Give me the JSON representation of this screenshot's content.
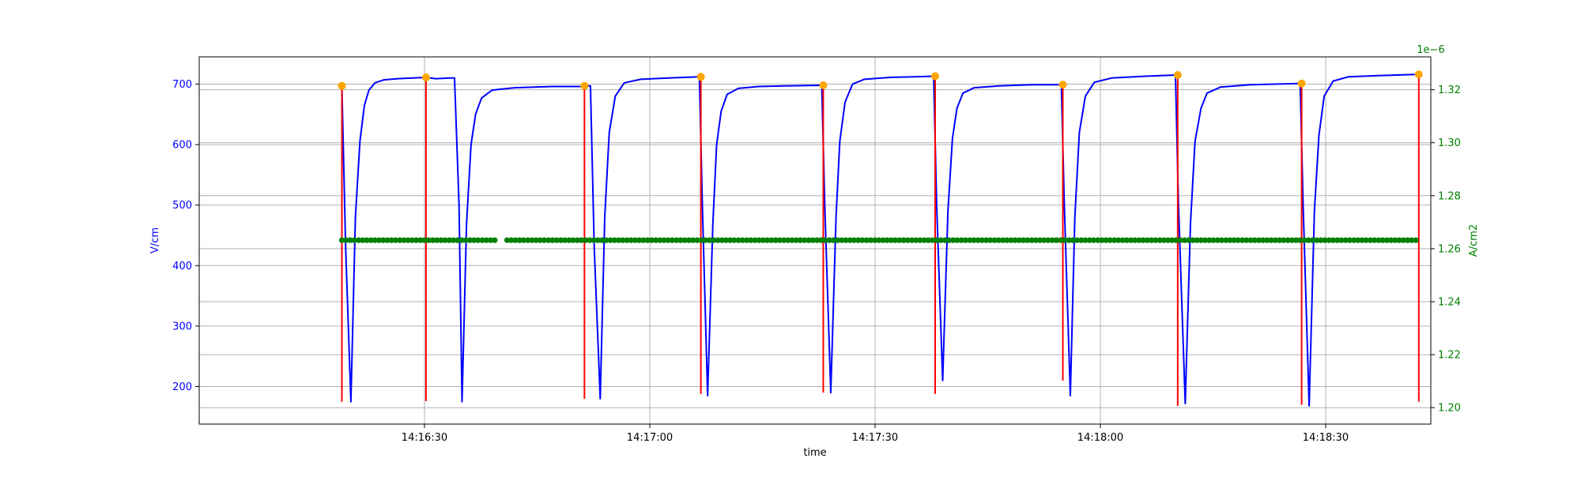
{
  "chart_data": {
    "type": "line",
    "xlabel": "time",
    "ylabel_left": "V/cm",
    "ylabel_right": "A/cm2",
    "right_offset_text": "1e−6",
    "x_range": [
      "14:16:00",
      "14:18:44"
    ],
    "x_ticks": [
      "14:16:30",
      "14:17:00",
      "14:17:30",
      "14:18:00",
      "14:18:30"
    ],
    "y_left_range": [
      138,
      745
    ],
    "y_left_ticks": [
      200,
      300,
      400,
      500,
      600,
      700
    ],
    "y_right_range": [
      1.1938,
      1.3324
    ],
    "y_right_ticks": [
      "1.20",
      "1.22",
      "1.24",
      "1.26",
      "1.28",
      "1.30",
      "1.32"
    ],
    "grid": true,
    "colors": {
      "field": "#0000ff",
      "pulses": "#ff0000",
      "peaks": "#ffa500",
      "current": "#008000",
      "left_axis": "#0000ff",
      "right_axis": "#008000"
    },
    "series": [
      {
        "axis": "left",
        "style": "line",
        "color": "#0000ff",
        "points": [
          [
            "14:16:19",
            697
          ],
          [
            "14:16:19.5",
            430
          ],
          [
            "14:16:20.2",
            175
          ],
          [
            "14:16:20.8",
            480
          ],
          [
            "14:16:21.4",
            605
          ],
          [
            "14:16:22.0",
            665
          ],
          [
            "14:16:22.6",
            690
          ],
          [
            "14:16:23.4",
            702
          ],
          [
            "14:16:24.6",
            707
          ],
          [
            "14:16:26.5",
            709
          ],
          [
            "14:16:28.5",
            710
          ],
          [
            "14:16:30.2",
            711
          ],
          [
            "14:16:31.5",
            709
          ],
          [
            "14:16:33.5",
            710
          ],
          [
            "14:16:34.0",
            710
          ],
          [
            "14:16:34.6",
            500
          ],
          [
            "14:16:35.0",
            175
          ],
          [
            "14:16:35.6",
            470
          ],
          [
            "14:16:36.2",
            600
          ],
          [
            "14:16:36.8",
            650
          ],
          [
            "14:16:37.6",
            677
          ],
          [
            "14:16:39.0",
            690
          ],
          [
            "14:16:42.0",
            694
          ],
          [
            "14:16:47.0",
            696
          ],
          [
            "14:16:51.0",
            696
          ],
          [
            "14:16:52.1",
            697
          ],
          [
            "14:16:52.6",
            430
          ],
          [
            "14:16:53.4",
            180
          ],
          [
            "14:16:54.0",
            480
          ],
          [
            "14:16:54.6",
            620
          ],
          [
            "14:16:55.4",
            680
          ],
          [
            "14:16:56.6",
            702
          ],
          [
            "14:16:58.8",
            708
          ],
          [
            "14:17:02.5",
            710
          ],
          [
            "14:17:06.6",
            712
          ],
          [
            "14:17:07.0",
            500
          ],
          [
            "14:17:07.7",
            185
          ],
          [
            "14:17:08.4",
            470
          ],
          [
            "14:17:08.9",
            600
          ],
          [
            "14:17:09.5",
            655
          ],
          [
            "14:17:10.3",
            683
          ],
          [
            "14:17:11.8",
            693
          ],
          [
            "14:17:14.5",
            696
          ],
          [
            "14:17:18.0",
            697
          ],
          [
            "14:17:22.9",
            698
          ],
          [
            "14:17:23.3",
            500
          ],
          [
            "14:17:24.1",
            190
          ],
          [
            "14:17:24.8",
            480
          ],
          [
            "14:17:25.3",
            605
          ],
          [
            "14:17:26.0",
            670
          ],
          [
            "14:17:27.0",
            700
          ],
          [
            "14:17:28.6",
            708
          ],
          [
            "14:17:32.0",
            711
          ],
          [
            "14:17:37.8",
            713
          ],
          [
            "14:17:38.2",
            500
          ],
          [
            "14:17:39.0",
            210
          ],
          [
            "14:17:39.7",
            490
          ],
          [
            "14:17:40.3",
            610
          ],
          [
            "14:17:40.9",
            660
          ],
          [
            "14:17:41.7",
            685
          ],
          [
            "14:17:43.2",
            694
          ],
          [
            "14:17:46.5",
            697
          ],
          [
            "14:17:51.0",
            699
          ],
          [
            "14:17:54.8",
            699
          ],
          [
            "14:17:55.2",
            500
          ],
          [
            "14:17:56.0",
            185
          ],
          [
            "14:17:56.6",
            480
          ],
          [
            "14:17:57.2",
            620
          ],
          [
            "14:17:58.0",
            680
          ],
          [
            "14:17:59.2",
            703
          ],
          [
            "14:18:01.5",
            710
          ],
          [
            "14:18:06.0",
            713
          ],
          [
            "14:18:10.0",
            715
          ],
          [
            "14:18:10.4",
            500
          ],
          [
            "14:18:11.3",
            172
          ],
          [
            "14:18:12.0",
            470
          ],
          [
            "14:18:12.6",
            605
          ],
          [
            "14:18:13.4",
            660
          ],
          [
            "14:18:14.2",
            685
          ],
          [
            "14:18:16.0",
            695
          ],
          [
            "14:18:20.0",
            699
          ],
          [
            "14:18:26.6",
            701
          ],
          [
            "14:18:27.0",
            500
          ],
          [
            "14:18:27.8",
            168
          ],
          [
            "14:18:28.5",
            490
          ],
          [
            "14:18:29.1",
            615
          ],
          [
            "14:18:29.8",
            680
          ],
          [
            "14:18:31.0",
            705
          ],
          [
            "14:18:33.0",
            712
          ],
          [
            "14:18:37.0",
            714
          ],
          [
            "14:18:42.2",
            716
          ]
        ]
      },
      {
        "axis": "left",
        "style": "vlines",
        "color": "#ff0000",
        "x": [
          "14:16:19.0",
          "14:16:30.2",
          "14:16:51.3",
          "14:17:06.8",
          "14:17:23.1",
          "14:17:38.0",
          "14:17:55.0",
          "14:18:10.3",
          "14:18:26.8",
          "14:18:42.4"
        ],
        "y_bottom": [
          175,
          176,
          180,
          188,
          190,
          188,
          210,
          168,
          170,
          175
        ],
        "y_top": [
          697,
          711,
          697,
          712,
          698,
          713,
          699,
          715,
          701,
          716
        ]
      },
      {
        "axis": "left",
        "style": "markers",
        "color": "#ffa500",
        "x": [
          "14:16:19.0",
          "14:16:30.2",
          "14:16:51.3",
          "14:17:06.8",
          "14:17:23.1",
          "14:17:38.0",
          "14:17:55.0",
          "14:18:10.3",
          "14:18:26.8",
          "14:18:42.4"
        ],
        "y": [
          697,
          711,
          697,
          712,
          698,
          713,
          699,
          715,
          701,
          716
        ]
      },
      {
        "axis": "right",
        "style": "line-markers",
        "color": "#008000",
        "x_start": "14:16:19.0",
        "x_end": "14:18:42.4",
        "gaps": [
          [
            "14:16:39.5",
            "14:16:41.0"
          ]
        ],
        "value": 1.2632
      }
    ]
  }
}
